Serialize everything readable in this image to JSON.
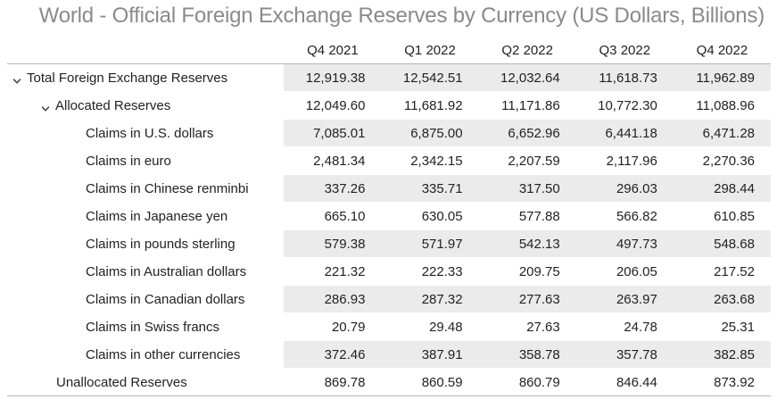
{
  "title": "World - Official Foreign Exchange Reserves by Currency (US Dollars, Billions)",
  "chart_data": {
    "type": "table",
    "title": "World - Official Foreign Exchange Reserves by Currency (US Dollars, Billions)",
    "columns": [
      "Q4 2021",
      "Q1 2022",
      "Q2 2022",
      "Q3 2022",
      "Q4 2022"
    ],
    "rows": [
      {
        "label": "Total Foreign Exchange Reserves",
        "level": 0,
        "expanded": true,
        "values": [
          "12,919.38",
          "12,542.51",
          "12,032.64",
          "11,618.73",
          "11,962.89"
        ]
      },
      {
        "label": "Allocated Reserves",
        "level": 1,
        "expanded": true,
        "values": [
          "12,049.60",
          "11,681.92",
          "11,171.86",
          "10,772.30",
          "11,088.96"
        ]
      },
      {
        "label": "Claims in U.S. dollars",
        "level": 2,
        "values": [
          "7,085.01",
          "6,875.00",
          "6,652.96",
          "6,441.18",
          "6,471.28"
        ]
      },
      {
        "label": "Claims in euro",
        "level": 2,
        "values": [
          "2,481.34",
          "2,342.15",
          "2,207.59",
          "2,117.96",
          "2,270.36"
        ]
      },
      {
        "label": "Claims in Chinese renminbi",
        "level": 2,
        "values": [
          "337.26",
          "335.71",
          "317.50",
          "296.03",
          "298.44"
        ]
      },
      {
        "label": "Claims in Japanese yen",
        "level": 2,
        "values": [
          "665.10",
          "630.05",
          "577.88",
          "566.82",
          "610.85"
        ]
      },
      {
        "label": "Claims in pounds sterling",
        "level": 2,
        "values": [
          "579.38",
          "571.97",
          "542.13",
          "497.73",
          "548.68"
        ]
      },
      {
        "label": "Claims in Australian dollars",
        "level": 2,
        "values": [
          "221.32",
          "222.33",
          "209.75",
          "206.05",
          "217.52"
        ]
      },
      {
        "label": "Claims in Canadian dollars",
        "level": 2,
        "values": [
          "286.93",
          "287.32",
          "277.63",
          "263.97",
          "263.68"
        ]
      },
      {
        "label": "Claims in Swiss francs",
        "level": 2,
        "values": [
          "20.79",
          "29.48",
          "27.63",
          "24.78",
          "25.31"
        ]
      },
      {
        "label": "Claims in other currencies",
        "level": 2,
        "values": [
          "372.46",
          "387.91",
          "358.78",
          "357.78",
          "382.85"
        ]
      },
      {
        "label": "Unallocated Reserves",
        "level": 1,
        "values": [
          "869.78",
          "860.59",
          "860.79",
          "846.44",
          "873.92"
        ]
      }
    ]
  },
  "colors": {
    "title": "#8a8a8a",
    "row_shade": "#ebebeb",
    "rule": "#b5b5b5",
    "text": "#222222"
  },
  "icons": {
    "expanded": "chevron-down-icon"
  }
}
